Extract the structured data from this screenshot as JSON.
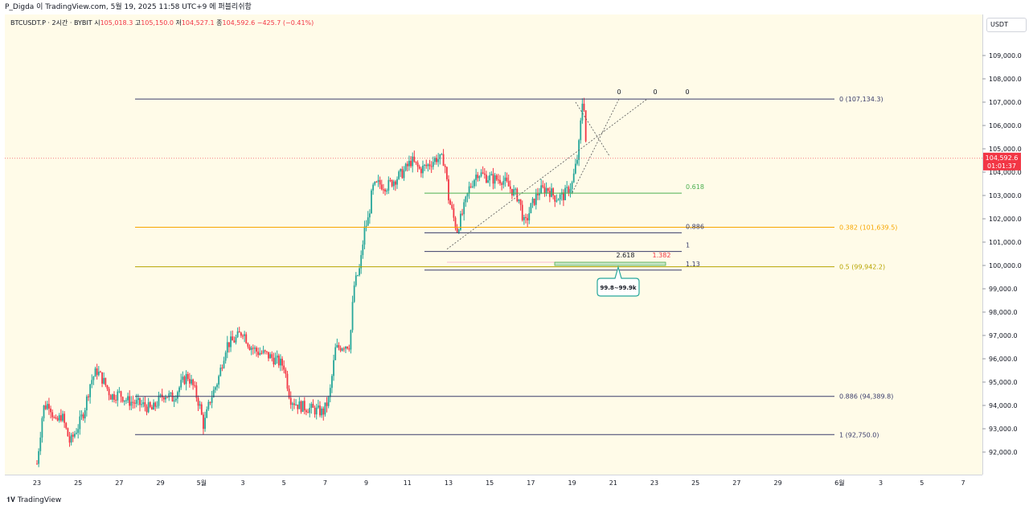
{
  "header": {
    "title": "P_Digda 이 TradingView.com, 5월 19, 2025 11:58 UTC+9 에 퍼블리쉬함"
  },
  "footer": {
    "brand": "TradingView"
  },
  "legend": {
    "symbol": "BTCUSDT.P · 2시간 · BYBIT",
    "o_label": "시",
    "o": "105,018.3",
    "h_label": "고",
    "h": "105,150.0",
    "l_label": "저",
    "l": "104,527.1",
    "c_label": "종",
    "c": "104,592.6",
    "change": "−425.7 (−0.41%)"
  },
  "colors": {
    "up": "#26a69a",
    "down": "#f23645",
    "bg": "#fffbe8",
    "orange": "#f7a600",
    "olive": "#b7a400",
    "navy": "#3a3d6b",
    "green": "#4caf50",
    "purple": "#7e57c2"
  },
  "chart_data": {
    "type": "candlestick",
    "currency": "USDT",
    "current_price": {
      "label": "104,592.6",
      "countdown": "01:01:37",
      "value": 104592.6
    },
    "ylim": [
      91400,
      110400
    ],
    "y_ticks": [
      {
        "value": 109000,
        "label": "109,000.0"
      },
      {
        "value": 108000,
        "label": "108,000.0"
      },
      {
        "value": 107000,
        "label": "107,000.0"
      },
      {
        "value": 106000,
        "label": "106,000.0"
      },
      {
        "value": 105000,
        "label": "105,000.0"
      },
      {
        "value": 104000,
        "label": "104,000.0"
      },
      {
        "value": 103000,
        "label": "103,000.0"
      },
      {
        "value": 102000,
        "label": "102,000.0"
      },
      {
        "value": 101000,
        "label": "101,000.0"
      },
      {
        "value": 100000,
        "label": "100,000.0"
      },
      {
        "value": 99000,
        "label": "99,000.0"
      },
      {
        "value": 98000,
        "label": "98,000.0"
      },
      {
        "value": 97000,
        "label": "97,000.0"
      },
      {
        "value": 96000,
        "label": "96,000.0"
      },
      {
        "value": 95000,
        "label": "95,000.0"
      },
      {
        "value": 94000,
        "label": "94,000.0"
      },
      {
        "value": 93000,
        "label": "93,000.0"
      },
      {
        "value": 92000,
        "label": "92,000.0"
      }
    ],
    "x_ticks": [
      {
        "day": 0,
        "label": "23"
      },
      {
        "day": 2,
        "label": "25"
      },
      {
        "day": 4,
        "label": "27"
      },
      {
        "day": 6,
        "label": "29"
      },
      {
        "day": 8,
        "label": "5월"
      },
      {
        "day": 10,
        "label": "3"
      },
      {
        "day": 12,
        "label": "5"
      },
      {
        "day": 14,
        "label": "7"
      },
      {
        "day": 16,
        "label": "9"
      },
      {
        "day": 18,
        "label": "11"
      },
      {
        "day": 20,
        "label": "13"
      },
      {
        "day": 22,
        "label": "15"
      },
      {
        "day": 24,
        "label": "17"
      },
      {
        "day": 26,
        "label": "19"
      },
      {
        "day": 28,
        "label": "21"
      },
      {
        "day": 30,
        "label": "23"
      },
      {
        "day": 32,
        "label": "25"
      },
      {
        "day": 34,
        "label": "27"
      },
      {
        "day": 36,
        "label": "29"
      },
      {
        "day": 39,
        "label": "6월"
      },
      {
        "day": 41,
        "label": "3"
      },
      {
        "day": 43,
        "label": "5"
      },
      {
        "day": 45,
        "label": "7"
      }
    ],
    "price_path": [
      [
        0,
        91500
      ],
      [
        0.3,
        93900
      ],
      [
        0.6,
        94100
      ],
      [
        0.9,
        93200
      ],
      [
        1.2,
        93600
      ],
      [
        1.6,
        92400
      ],
      [
        2.0,
        93100
      ],
      [
        2.3,
        93800
      ],
      [
        2.6,
        95000
      ],
      [
        2.9,
        95500
      ],
      [
        3.2,
        95100
      ],
      [
        3.6,
        94400
      ],
      [
        4.0,
        94500
      ],
      [
        4.4,
        94200
      ],
      [
        4.8,
        94100
      ],
      [
        5.2,
        94000
      ],
      [
        5.6,
        93800
      ],
      [
        5.9,
        94200
      ],
      [
        6.2,
        94500
      ],
      [
        6.6,
        94300
      ],
      [
        7.0,
        94900
      ],
      [
        7.3,
        95300
      ],
      [
        7.6,
        94800
      ],
      [
        7.9,
        94000
      ],
      [
        8.1,
        93100
      ],
      [
        8.4,
        94200
      ],
      [
        8.8,
        95100
      ],
      [
        9.2,
        96600
      ],
      [
        9.6,
        96800
      ],
      [
        10.0,
        97200
      ],
      [
        10.3,
        96600
      ],
      [
        10.7,
        96300
      ],
      [
        11.1,
        96200
      ],
      [
        11.5,
        96000
      ],
      [
        12.0,
        95700
      ],
      [
        12.3,
        94300
      ],
      [
        12.7,
        94000
      ],
      [
        13.1,
        93900
      ],
      [
        13.5,
        93800
      ],
      [
        13.9,
        93700
      ],
      [
        14.2,
        94300
      ],
      [
        14.5,
        96400
      ],
      [
        14.9,
        96600
      ],
      [
        15.2,
        96600
      ],
      [
        15.4,
        99100
      ],
      [
        15.7,
        99900
      ],
      [
        15.9,
        101500
      ],
      [
        16.1,
        102000
      ],
      [
        16.3,
        103300
      ],
      [
        16.6,
        103500
      ],
      [
        17.0,
        103400
      ],
      [
        17.4,
        103700
      ],
      [
        17.8,
        104000
      ],
      [
        18.2,
        104500
      ],
      [
        18.6,
        104100
      ],
      [
        19.0,
        104300
      ],
      [
        19.4,
        104600
      ],
      [
        19.8,
        104500
      ],
      [
        20.0,
        102900
      ],
      [
        20.2,
        102200
      ],
      [
        20.4,
        101500
      ],
      [
        20.7,
        102300
      ],
      [
        21.0,
        103300
      ],
      [
        21.4,
        104000
      ],
      [
        21.8,
        103800
      ],
      [
        22.2,
        103700
      ],
      [
        22.6,
        103700
      ],
      [
        23.0,
        103300
      ],
      [
        23.4,
        102900
      ],
      [
        23.7,
        101700
      ],
      [
        24.0,
        102500
      ],
      [
        24.4,
        103200
      ],
      [
        24.8,
        103300
      ],
      [
        25.2,
        102900
      ],
      [
        25.6,
        103000
      ],
      [
        26.0,
        103500
      ],
      [
        26.3,
        104800
      ],
      [
        26.5,
        107000
      ],
      [
        26.6,
        106800
      ],
      [
        26.7,
        104600
      ]
    ],
    "fib_major": [
      {
        "name": "fib-major-0",
        "level": "0",
        "price": 107134.3,
        "label": "0 (107,134.3)",
        "color": "#3a3d6b"
      },
      {
        "name": "fib-major-0382",
        "level": "0.382",
        "price": 101639.5,
        "label": "0.382 (101,639.5)",
        "color": "#f7a600"
      },
      {
        "name": "fib-major-05",
        "level": "0.5",
        "price": 99942.2,
        "label": "0.5 (99,942.2)",
        "color": "#b7a400"
      },
      {
        "name": "fib-major-0886",
        "level": "0.886",
        "price": 94389.8,
        "label": "0.886 (94,389.8)",
        "color": "#3a3d6b"
      },
      {
        "name": "fib-major-1",
        "level": "1",
        "price": 92750.0,
        "label": "1 (92,750.0)",
        "color": "#3a3d6b"
      }
    ],
    "fib_minor": [
      {
        "name": "fib-minor-0618",
        "label": "0.618",
        "price": 103100,
        "color": "#4caf50"
      },
      {
        "name": "fib-minor-0886",
        "label": "0.886",
        "price": 101400,
        "color": "#3a3d6b"
      },
      {
        "name": "fib-minor-1",
        "label": "1",
        "price": 100600,
        "color": "#3a3d6b"
      },
      {
        "name": "fib-minor-113",
        "label": "1.13",
        "price": 99800,
        "color": "#3a3d6b"
      }
    ],
    "top_zero_labels": [
      "0",
      "0",
      "0"
    ],
    "extension_labels": {
      "a": "2.618",
      "b": "1.382"
    },
    "target_box": {
      "label": "99.8~99.9k"
    }
  }
}
